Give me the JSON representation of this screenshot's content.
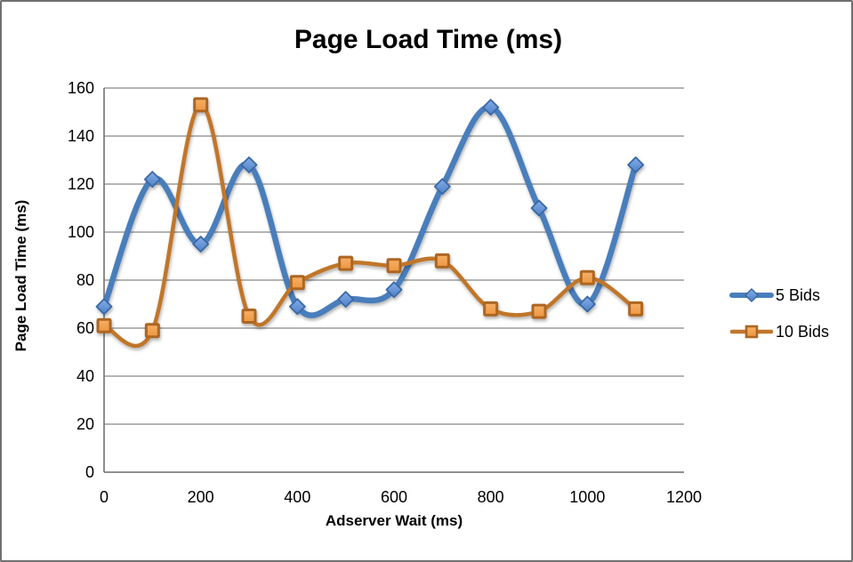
{
  "chart_data": {
    "type": "line",
    "title": "Page Load Time (ms)",
    "xlabel": "Adserver Wait (ms)",
    "ylabel": "Page Load Time (ms)",
    "x": [
      0,
      100,
      200,
      300,
      400,
      500,
      600,
      700,
      800,
      900,
      1000,
      1100
    ],
    "series": [
      {
        "name": "5 Bids",
        "values": [
          69,
          122,
          95,
          128,
          69,
          72,
          76,
          119,
          152,
          110,
          70,
          128
        ],
        "color": "#4A7EBB",
        "marker": "diamond",
        "marker_fill_light": "#85ACE8",
        "marker_fill_dark": "#4E82C6",
        "marker_stroke": "#3A67A5",
        "line_width": 6.5,
        "marker_size": 8.5,
        "marker_stroke_width": 1.8
      },
      {
        "name": "10 Bids",
        "values": [
          61,
          59,
          153,
          65,
          79,
          87,
          86,
          88,
          68,
          67,
          81,
          68
        ],
        "color": "#C0762B",
        "marker": "square",
        "marker_fill_light": "#F6B069",
        "marker_fill_dark": "#EE9740",
        "marker_stroke": "#AD6622",
        "line_width": 4.5,
        "marker_size": 7,
        "marker_stroke_width": 3
      }
    ],
    "xticks": [
      0,
      200,
      400,
      600,
      800,
      1000,
      1200
    ],
    "yticks": [
      0,
      20,
      40,
      60,
      80,
      100,
      120,
      140,
      160
    ],
    "xlim": [
      0,
      1200
    ],
    "ylim": [
      0,
      160
    ],
    "grid": "horizontal",
    "grid_color": "#9B9B9B",
    "axis_color": "#808080",
    "legend_position": "right",
    "smooth_lines": true
  }
}
